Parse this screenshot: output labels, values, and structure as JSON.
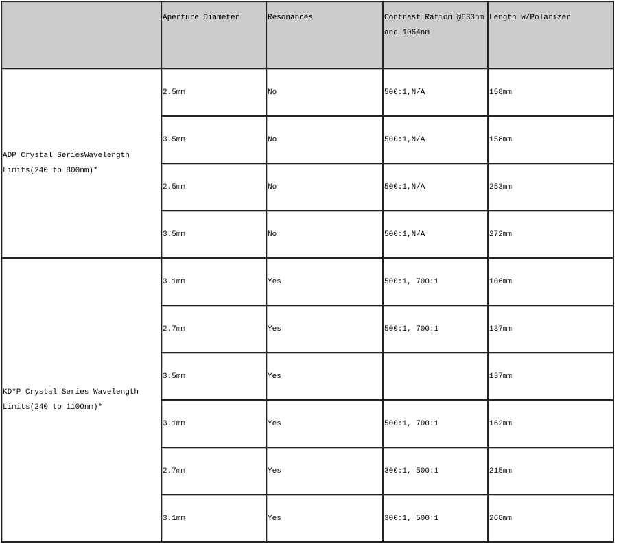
{
  "headers": [
    "",
    "Aperture Diameter",
    "Resonances",
    "Contrast Ration @633nm and 1064nm",
    "Length w/Polarizer"
  ],
  "groups": [
    {
      "label": "ADP Crystal SeriesWavelength Limits(240 to 800nm)*",
      "rows": [
        [
          "2.5mm",
          "No",
          "500:1,N/A",
          "158mm"
        ],
        [
          "3.5mm",
          "No",
          "500:1,N/A",
          "158mm"
        ],
        [
          "2.5mm",
          "No",
          "500:1,N/A",
          "253mm"
        ],
        [
          "3.5mm",
          "No",
          "500:1,N/A",
          "272mm"
        ]
      ]
    },
    {
      "label": "KD*P Crystal Series Wavelength Limits(240 to 1100nm)*",
      "rows": [
        [
          "3.1mm",
          "Yes",
          "500:1, 700:1",
          "106mm"
        ],
        [
          "2.7mm",
          "Yes",
          "500:1, 700:1",
          "137mm"
        ],
        [
          "3.5mm",
          "Yes",
          "",
          "137mm"
        ],
        [
          "3.1mm",
          "Yes",
          "500:1, 700:1",
          "162mm"
        ],
        [
          "2.7mm",
          "Yes",
          "300:1, 500:1",
          "215mm"
        ],
        [
          "3.1mm",
          "Yes",
          "300:1, 500:1",
          "268mm"
        ]
      ]
    }
  ]
}
